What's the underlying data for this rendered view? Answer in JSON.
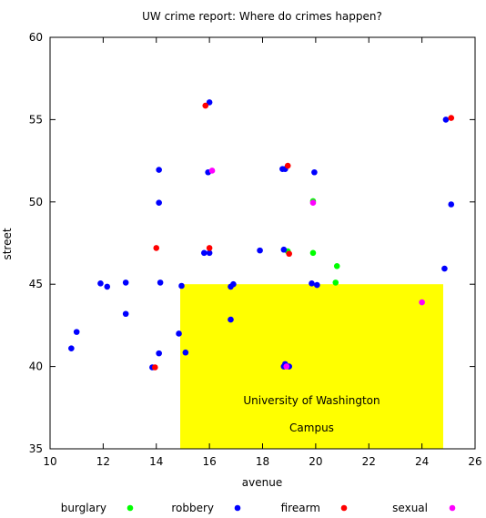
{
  "chart_data": {
    "type": "scatter",
    "title": "UW crime report: Where do crimes happen?",
    "xlabel": "avenue",
    "ylabel": "street",
    "xlim": [
      10,
      26
    ],
    "ylim": [
      35,
      60
    ],
    "xticks": [
      10,
      12,
      14,
      16,
      18,
      20,
      22,
      24,
      26
    ],
    "yticks": [
      35,
      40,
      45,
      50,
      55,
      60
    ],
    "grid": false,
    "legend_position": "bottom",
    "region": {
      "x": [
        14.9,
        24.8
      ],
      "y": [
        35,
        45
      ],
      "color": "#ffff00",
      "labels": [
        "University of Washington",
        "Campus"
      ]
    },
    "series": [
      {
        "name": "burglary",
        "color": "#00ff00",
        "points": [
          [
            18.95,
            47.0
          ],
          [
            19.9,
            50.05
          ],
          [
            19.9,
            46.9
          ],
          [
            20.8,
            46.1
          ],
          [
            20.75,
            45.1
          ]
        ]
      },
      {
        "name": "robbery",
        "color": "#0000ff",
        "points": [
          [
            16.0,
            56.05
          ],
          [
            24.9,
            55.0
          ],
          [
            25.1,
            49.85
          ],
          [
            14.1,
            51.95
          ],
          [
            15.95,
            51.8
          ],
          [
            18.75,
            52.0
          ],
          [
            18.85,
            52.0
          ],
          [
            19.95,
            51.8
          ],
          [
            14.1,
            49.95
          ],
          [
            15.8,
            46.9
          ],
          [
            16.0,
            46.9
          ],
          [
            17.9,
            47.05
          ],
          [
            18.8,
            47.1
          ],
          [
            24.85,
            45.95
          ],
          [
            11.9,
            45.05
          ],
          [
            12.15,
            44.85
          ],
          [
            12.85,
            45.1
          ],
          [
            14.15,
            45.1
          ],
          [
            14.95,
            44.9
          ],
          [
            16.8,
            44.85
          ],
          [
            16.9,
            45.0
          ],
          [
            19.85,
            45.05
          ],
          [
            20.05,
            44.95
          ],
          [
            12.85,
            43.2
          ],
          [
            11.0,
            42.1
          ],
          [
            10.8,
            41.1
          ],
          [
            14.85,
            42.0
          ],
          [
            16.8,
            42.85
          ],
          [
            14.1,
            40.8
          ],
          [
            15.1,
            40.85
          ],
          [
            13.85,
            39.95
          ],
          [
            18.8,
            40.0
          ],
          [
            18.85,
            40.15
          ],
          [
            19.0,
            40.0
          ]
        ]
      },
      {
        "name": "firearm",
        "color": "#ff0000",
        "points": [
          [
            15.85,
            55.85
          ],
          [
            25.1,
            55.1
          ],
          [
            18.95,
            52.2
          ],
          [
            14.0,
            47.2
          ],
          [
            16.0,
            47.2
          ],
          [
            19.0,
            46.85
          ],
          [
            13.95,
            39.95
          ]
        ]
      },
      {
        "name": "sexual",
        "color": "#ff00ff",
        "points": [
          [
            16.1,
            51.9
          ],
          [
            19.9,
            49.95
          ],
          [
            24.0,
            43.9
          ],
          [
            18.9,
            40.0
          ]
        ]
      }
    ]
  }
}
